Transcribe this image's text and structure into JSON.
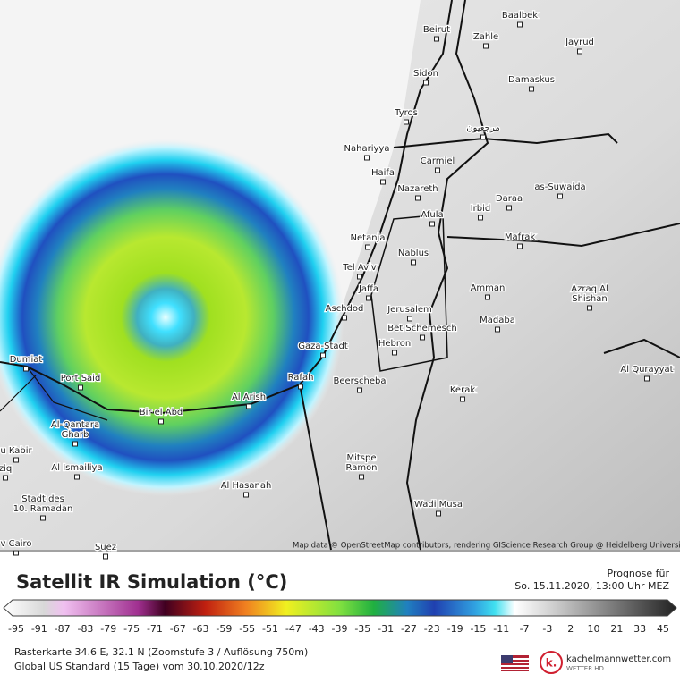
{
  "map": {
    "cities": [
      [
        "Beirut"
      ],
      [
        "Zahle"
      ],
      [
        "Baalbek"
      ],
      [
        "Jayrud"
      ],
      [
        "Sidon"
      ],
      [
        "Damaskus"
      ],
      [
        "Tyros"
      ],
      [
        "مرجعيون"
      ],
      [
        "Nahariyya"
      ],
      [
        "Carmiel"
      ],
      [
        "Haifa"
      ],
      [
        "Nazareth"
      ],
      [
        "as-Suwaida"
      ],
      [
        "Daraa"
      ],
      [
        "Irbid"
      ],
      [
        "Afula"
      ],
      [
        "Netanja"
      ],
      [
        "Mafrak"
      ],
      [
        "Nablus"
      ],
      [
        "Tel Aviv"
      ],
      [
        "Jaffa"
      ],
      [
        "Amman"
      ],
      [
        "Azraq Al",
        "Shishan"
      ],
      [
        "Aschdod"
      ],
      [
        "Jerusalem"
      ],
      [
        "Madaba"
      ],
      [
        "Bet Schemesch"
      ],
      [
        "Gaza-Stadt"
      ],
      [
        "Hebron"
      ],
      [
        "Dumiat"
      ],
      [
        "Al Qurayyat"
      ],
      [
        "Port Said"
      ],
      [
        "Rafah"
      ],
      [
        "Al Arish"
      ],
      [
        "Beerscheba"
      ],
      [
        "Kerak"
      ],
      [
        "Bir el Abd"
      ],
      [
        "Al-Qantara",
        "Gharb"
      ],
      [
        "u Kabir"
      ],
      [
        "ziq"
      ],
      [
        "Al Ismailiya"
      ],
      [
        "Mitspe",
        "Ramon"
      ],
      [
        "Al Hasanah"
      ],
      [
        "Stadt des",
        "10. Ramadan"
      ],
      [
        "Wadi Musa"
      ],
      [
        "v Cairo"
      ],
      [
        "Suez"
      ]
    ],
    "attribution": "Map data © OpenStreetMap contributors, rendering GIScience Research Group @ Heidelberg University"
  },
  "header": {
    "title": "Satellit IR Simulation (°C)",
    "forecast_label": "Prognose für",
    "forecast_time": "So. 15.11.2020, 13:00 Uhr MEZ"
  },
  "colorbar": {
    "ticks": [
      -95,
      -91,
      -87,
      -83,
      -79,
      -75,
      -71,
      -67,
      -63,
      -59,
      -55,
      -51,
      -47,
      -43,
      -39,
      -35,
      -31,
      -27,
      -23,
      -19,
      -15,
      -11,
      -7,
      -3,
      2,
      10,
      21,
      33,
      45
    ]
  },
  "footer": {
    "line1": "Rasterkarte 34.6 E, 32.1 N (Zoomstufe 3 / Auflösung 750m)",
    "line2": "Global US Standard (15 Tage) vom 30.10.2020/12z",
    "logo_mark": "k.",
    "logo_name": "kachelmannwetter.com",
    "logo_sub": "WETTER HD"
  }
}
